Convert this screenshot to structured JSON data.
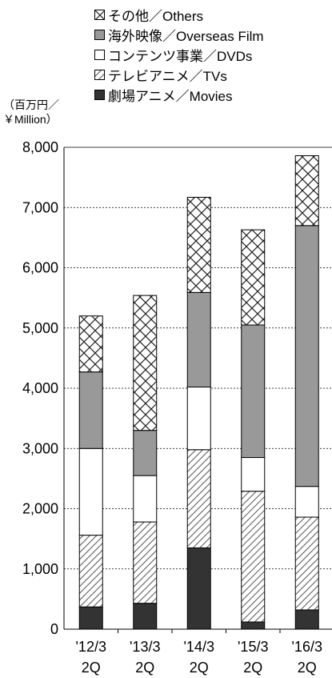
{
  "chart_data": {
    "type": "bar",
    "stacked": true,
    "categories": [
      [
        "'12/3",
        "2Q"
      ],
      [
        "'13/3",
        "2Q"
      ],
      [
        "'14/3",
        "2Q"
      ],
      [
        "'15/3",
        "2Q"
      ],
      [
        "'16/3",
        "2Q"
      ]
    ],
    "unit_label": [
      "（百万円／",
      "￥Million）"
    ],
    "ylim": [
      0,
      8000
    ],
    "yticks": [
      "0",
      "1,000",
      "2,000",
      "3,000",
      "4,000",
      "5,000",
      "6,000",
      "7,000",
      "8,000"
    ],
    "ytick_values": [
      0,
      1000,
      2000,
      3000,
      4000,
      5000,
      6000,
      7000,
      8000
    ],
    "grid": "horizontal dotted",
    "legend_position": "top",
    "series": [
      {
        "name": "劇場アニメ／Movies",
        "pattern": "solid-dark",
        "color": "#333333",
        "values": [
          370,
          430,
          1350,
          120,
          320
        ]
      },
      {
        "name": "テレビアニメ／TVs",
        "pattern": "diagonal-hatch",
        "color": "#888888",
        "values": [
          1190,
          1350,
          1630,
          2170,
          1540
        ]
      },
      {
        "name": "コンテンツ事業／DVDs",
        "pattern": "white",
        "color": "#ffffff",
        "values": [
          1440,
          770,
          1040,
          560,
          510
        ]
      },
      {
        "name": "海外映像／Overseas Film",
        "pattern": "gray",
        "color": "#999999",
        "values": [
          1270,
          750,
          1570,
          2200,
          4330
        ]
      },
      {
        "name": "その他／Others",
        "pattern": "cross-hatch",
        "color": "#000000",
        "values": [
          930,
          2240,
          1580,
          1580,
          1160
        ]
      }
    ]
  },
  "legend_order": [
    4,
    3,
    2,
    1,
    0
  ]
}
